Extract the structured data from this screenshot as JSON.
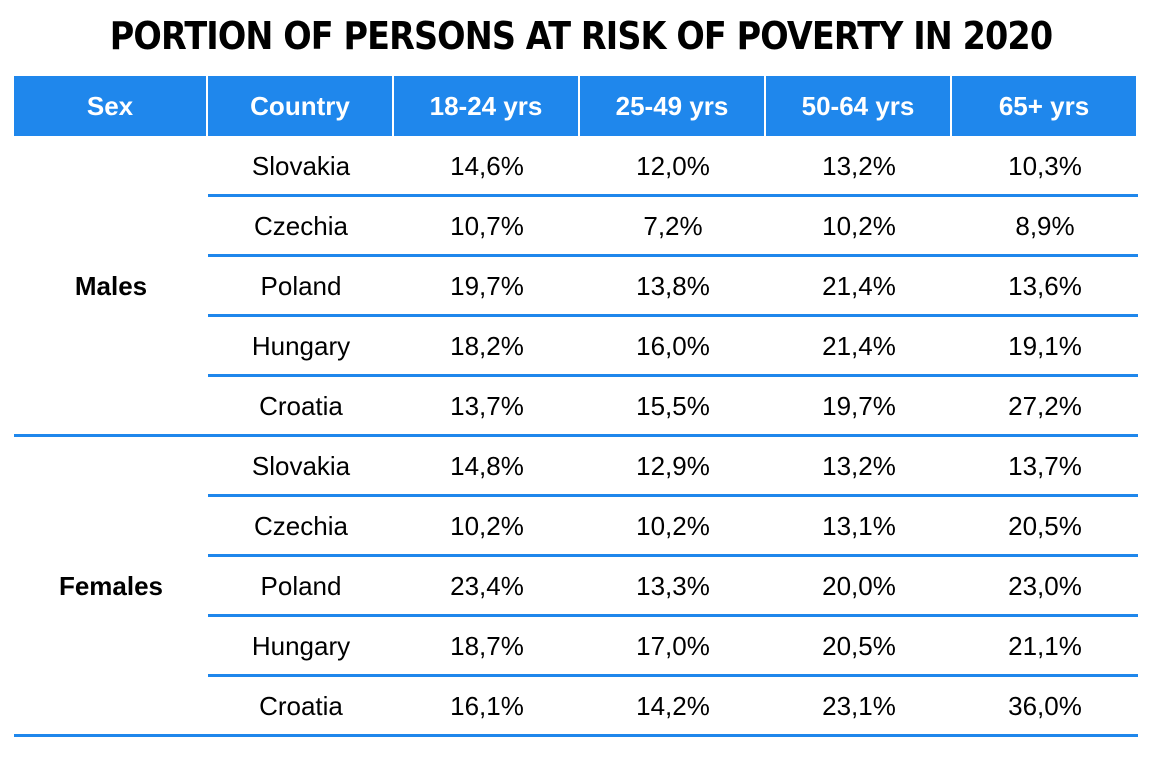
{
  "chart_data": {
    "type": "table",
    "title": "PORTION OF PERSONS AT RISK OF POVERTY IN 2020",
    "columns": [
      "Sex",
      "Country",
      "18-24 yrs",
      "25-49 yrs",
      "50-64 yrs",
      "65+ yrs"
    ],
    "groups": [
      {
        "sex": "Males",
        "rows": [
          {
            "country": "Slovakia",
            "values": [
              "14,6%",
              "12,0%",
              "13,2%",
              "10,3%"
            ]
          },
          {
            "country": "Czechia",
            "values": [
              "10,7%",
              "7,2%",
              "10,2%",
              "8,9%"
            ]
          },
          {
            "country": "Poland",
            "values": [
              "19,7%",
              "13,8%",
              "21,4%",
              "13,6%"
            ]
          },
          {
            "country": "Hungary",
            "values": [
              "18,2%",
              "16,0%",
              "21,4%",
              "19,1%"
            ]
          },
          {
            "country": "Croatia",
            "values": [
              "13,7%",
              "15,5%",
              "19,7%",
              "27,2%"
            ]
          }
        ]
      },
      {
        "sex": "Females",
        "rows": [
          {
            "country": "Slovakia",
            "values": [
              "14,8%",
              "12,9%",
              "13,2%",
              "13,7%"
            ]
          },
          {
            "country": "Czechia",
            "values": [
              "10,2%",
              "10,2%",
              "13,1%",
              "20,5%"
            ]
          },
          {
            "country": "Poland",
            "values": [
              "23,4%",
              "13,3%",
              "20,0%",
              "23,0%"
            ]
          },
          {
            "country": "Hungary",
            "values": [
              "18,7%",
              "17,0%",
              "20,5%",
              "21,1%"
            ]
          },
          {
            "country": "Croatia",
            "values": [
              "16,1%",
              "14,2%",
              "23,1%",
              "36,0%"
            ]
          }
        ]
      }
    ],
    "accent_color": "#1f87ec"
  }
}
